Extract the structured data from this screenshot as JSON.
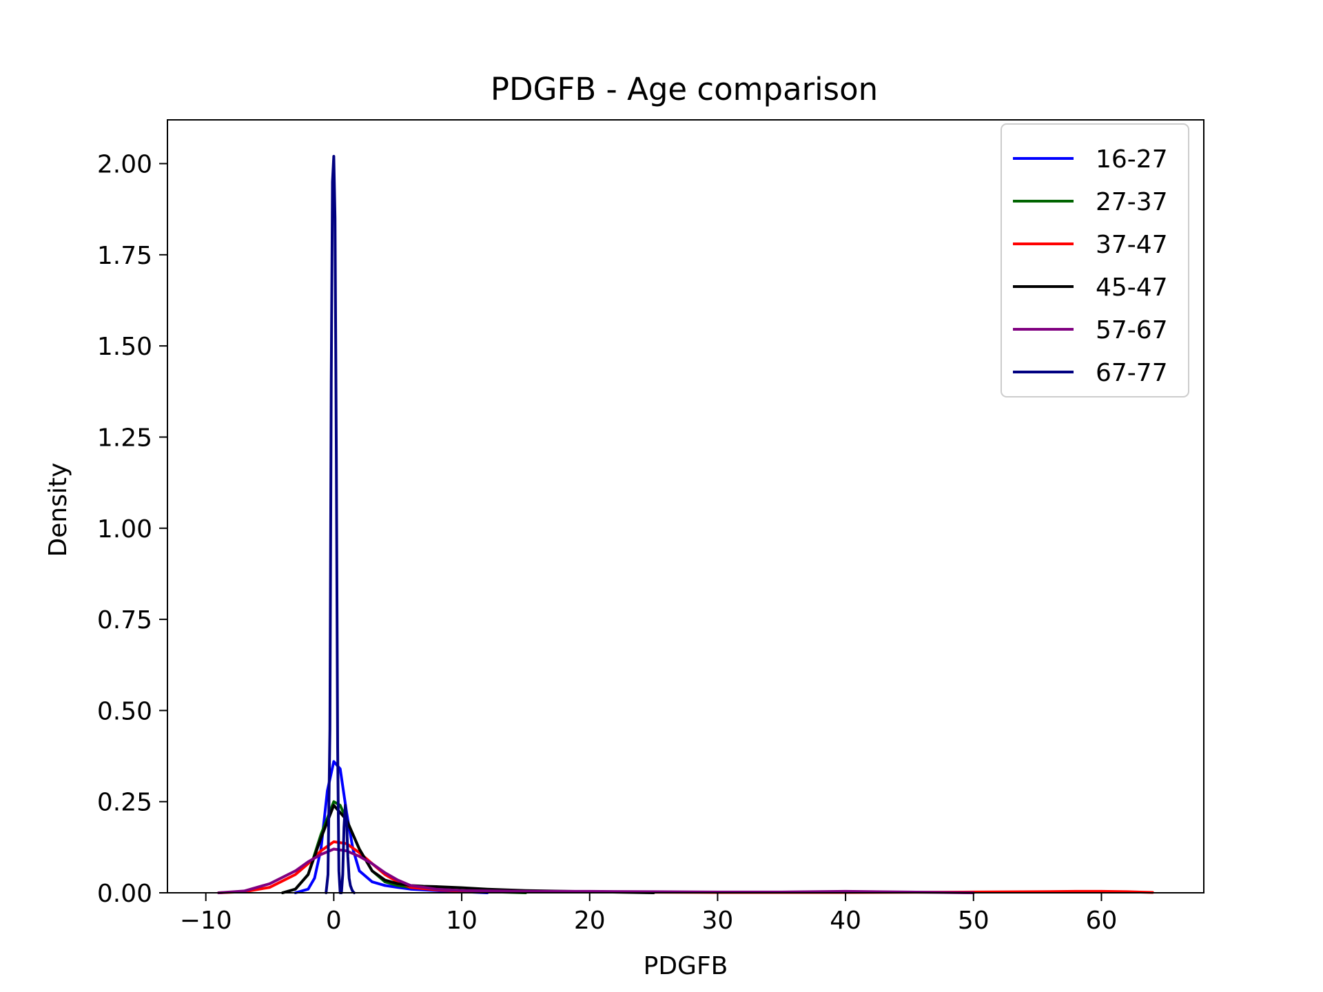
{
  "chart_data": {
    "type": "line",
    "title": "PDGFB - Age comparison",
    "xlabel": "PDGFB",
    "ylabel": "Density",
    "xlim": [
      -13,
      68
    ],
    "ylim": [
      0,
      2.12
    ],
    "xticks": [
      -10,
      0,
      10,
      20,
      30,
      40,
      50,
      60
    ],
    "xtick_labels": [
      "−10",
      "0",
      "10",
      "20",
      "30",
      "40",
      "50",
      "60"
    ],
    "yticks": [
      0,
      0.25,
      0.5,
      0.75,
      1.0,
      1.25,
      1.5,
      1.75,
      2.0
    ],
    "ytick_labels": [
      "0.00",
      "0.25",
      "0.50",
      "0.75",
      "1.00",
      "1.25",
      "1.50",
      "1.75",
      "2.00"
    ],
    "grid": false,
    "legend_position": "top-right",
    "series": [
      {
        "name": "16-27",
        "color": "#0000ff",
        "x": [
          -3,
          -2,
          -1.5,
          -1,
          -0.5,
          0,
          0.5,
          1,
          1.5,
          2,
          3,
          4,
          5,
          6,
          8,
          10,
          12
        ],
        "y": [
          0,
          0.01,
          0.04,
          0.12,
          0.28,
          0.36,
          0.34,
          0.22,
          0.12,
          0.06,
          0.03,
          0.02,
          0.015,
          0.01,
          0.006,
          0.003,
          0
        ]
      },
      {
        "name": "27-37",
        "color": "#006400",
        "x": [
          -4,
          -3,
          -2,
          -1,
          0,
          0.5,
          1,
          2,
          3,
          4,
          5,
          6,
          8,
          10,
          12,
          15
        ],
        "y": [
          0,
          0.01,
          0.05,
          0.16,
          0.25,
          0.24,
          0.2,
          0.12,
          0.06,
          0.03,
          0.02,
          0.015,
          0.01,
          0.006,
          0.003,
          0
        ]
      },
      {
        "name": "37-47",
        "color": "#ff0000",
        "x": [
          -9,
          -7,
          -5,
          -3,
          -2,
          -1,
          0,
          1,
          2,
          3,
          4,
          5,
          6,
          8,
          10,
          15,
          20,
          30,
          40,
          50,
          55,
          58,
          60,
          62,
          64
        ],
        "y": [
          0,
          0.003,
          0.015,
          0.05,
          0.08,
          0.115,
          0.14,
          0.135,
          0.11,
          0.08,
          0.05,
          0.03,
          0.015,
          0.008,
          0.005,
          0.003,
          0.002,
          0.001,
          0.001,
          0.002,
          0.003,
          0.004,
          0.004,
          0.003,
          0.001
        ]
      },
      {
        "name": "45-47",
        "color": "#000000",
        "x": [
          -4,
          -3,
          -2,
          -1,
          0,
          1,
          2,
          3,
          4,
          5,
          6,
          7,
          8,
          10,
          12,
          15,
          20,
          25
        ],
        "y": [
          0,
          0.01,
          0.05,
          0.15,
          0.24,
          0.2,
          0.12,
          0.06,
          0.035,
          0.025,
          0.02,
          0.018,
          0.017,
          0.014,
          0.01,
          0.006,
          0.003,
          0
        ]
      },
      {
        "name": "57-67",
        "color": "#800080",
        "x": [
          -9,
          -7,
          -5,
          -3,
          -2,
          -1,
          0,
          1,
          2,
          3,
          4,
          5,
          6,
          8,
          10,
          15,
          20,
          25,
          30,
          35,
          40,
          45,
          50
        ],
        "y": [
          0,
          0.005,
          0.025,
          0.06,
          0.085,
          0.105,
          0.12,
          0.115,
          0.1,
          0.08,
          0.055,
          0.035,
          0.02,
          0.01,
          0.006,
          0.004,
          0.004,
          0.003,
          0.002,
          0.002,
          0.004,
          0.002,
          0
        ]
      },
      {
        "name": "67-77",
        "color": "#000080",
        "x": [
          -0.6,
          -0.45,
          -0.3,
          -0.2,
          -0.1,
          0,
          0.1,
          0.2,
          0.3,
          0.4,
          0.5,
          0.6,
          0.7,
          0.8,
          0.9,
          1.0,
          1.1,
          1.2,
          1.3,
          1.4,
          1.5,
          1.6
        ],
        "y": [
          0,
          0.05,
          0.45,
          1.4,
          1.95,
          2.02,
          1.85,
          1.2,
          0.4,
          0.06,
          0,
          0.0,
          0.05,
          0.18,
          0.24,
          0.2,
          0.1,
          0.04,
          0.02,
          0.01,
          0.003,
          0
        ]
      }
    ]
  }
}
